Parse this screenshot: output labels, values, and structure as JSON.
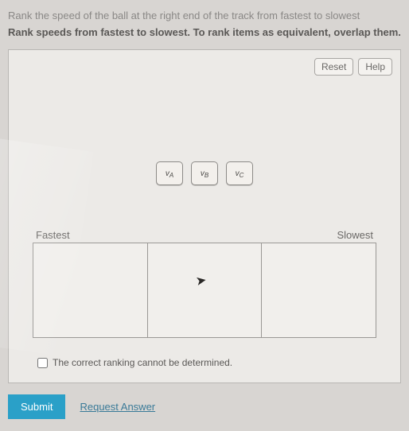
{
  "prompt": {
    "line1": "Rank the speed of the ball at the right end of the track from fastest to slowest",
    "line2": "Rank speeds from fastest to slowest. To rank items as equivalent, overlap them."
  },
  "buttons": {
    "reset": "Reset",
    "help": "Help"
  },
  "chips": {
    "a_prefix": "v",
    "a_sub": "A",
    "b_prefix": "v",
    "b_sub": "B",
    "c_prefix": "v",
    "c_sub": "C"
  },
  "rank": {
    "fastest": "Fastest",
    "slowest": "Slowest"
  },
  "checkbox": {
    "label": "The correct ranking cannot be determined."
  },
  "actions": {
    "submit": "Submit",
    "request": "Request Answer"
  }
}
